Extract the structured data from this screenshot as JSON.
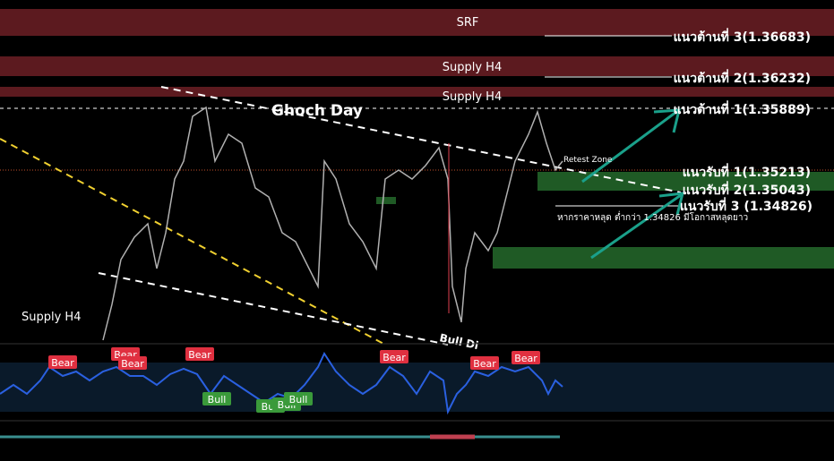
{
  "zones": [
    {
      "label": "SRF"
    },
    {
      "label": "Supply H4"
    },
    {
      "label": "Supply H4"
    }
  ],
  "chart_label": "Ghoch Day",
  "left_label": "Supply H4",
  "levels": [
    {
      "label": "แนวต้านที่ 3(1.36683)"
    },
    {
      "label": "แนวต้านที่ 2(1.36232)"
    },
    {
      "label": "แนวต้านที่ 1(1.35889)"
    },
    {
      "label": "แนวรับที่ 1(1.35213)"
    },
    {
      "label": "แนวรับที่ 2(1.35043)"
    },
    {
      "label": "แนวรับที่ 3 (1.34826)"
    }
  ],
  "note": "หากราคาหลุด ต่ำกว่า 1.34826 มีโอกาสหลุดยาว",
  "retest": "Retest Zone",
  "bull_div": "Bull Di",
  "indicator": {
    "bear": [
      "Bear",
      "Bear",
      "Bear",
      "Bear",
      "Bear",
      "Bear",
      "Bear"
    ],
    "bull": [
      "Bull",
      "Bull",
      "Bull",
      "Bull"
    ]
  }
}
